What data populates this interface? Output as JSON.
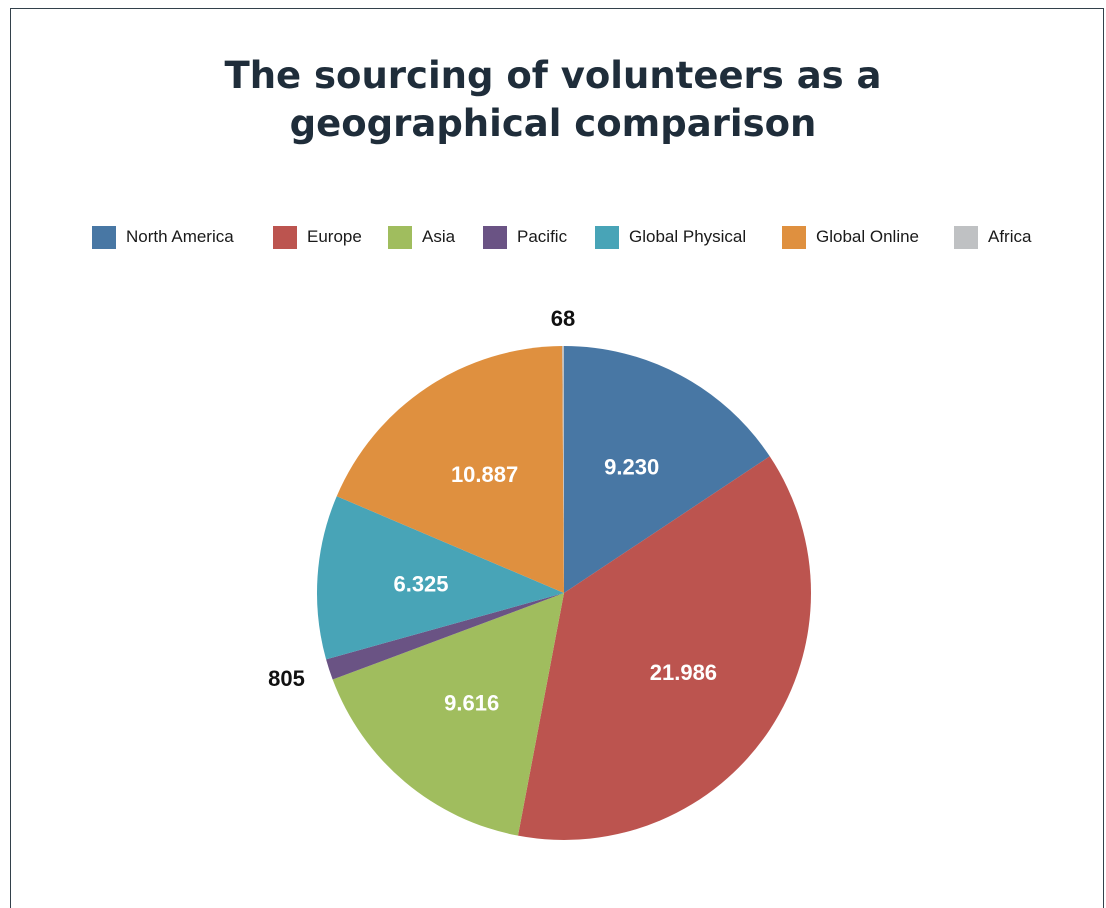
{
  "chart_data": {
    "type": "pie",
    "title_lines": [
      "The sourcing of volunteers as a",
      "geographical comparison"
    ],
    "legend_position": "top",
    "slices": [
      {
        "label": "North America",
        "value": 9230,
        "display": "9.230",
        "color": "#4877a4"
      },
      {
        "label": "Europe",
        "value": 21986,
        "display": "21.986",
        "color": "#bc544f"
      },
      {
        "label": "Asia",
        "value": 9616,
        "display": "9.616",
        "color": "#a0bd5e"
      },
      {
        "label": "Pacific",
        "value": 805,
        "display": "805",
        "color": "#6a5384"
      },
      {
        "label": "Global Physical",
        "value": 6325,
        "display": "6.325",
        "color": "#48a4b7"
      },
      {
        "label": "Global Online",
        "value": 10887,
        "display": "10.887",
        "color": "#df903f"
      },
      {
        "label": "Africa",
        "value": 68,
        "display": "68",
        "color": "#bfc1c3"
      }
    ]
  }
}
